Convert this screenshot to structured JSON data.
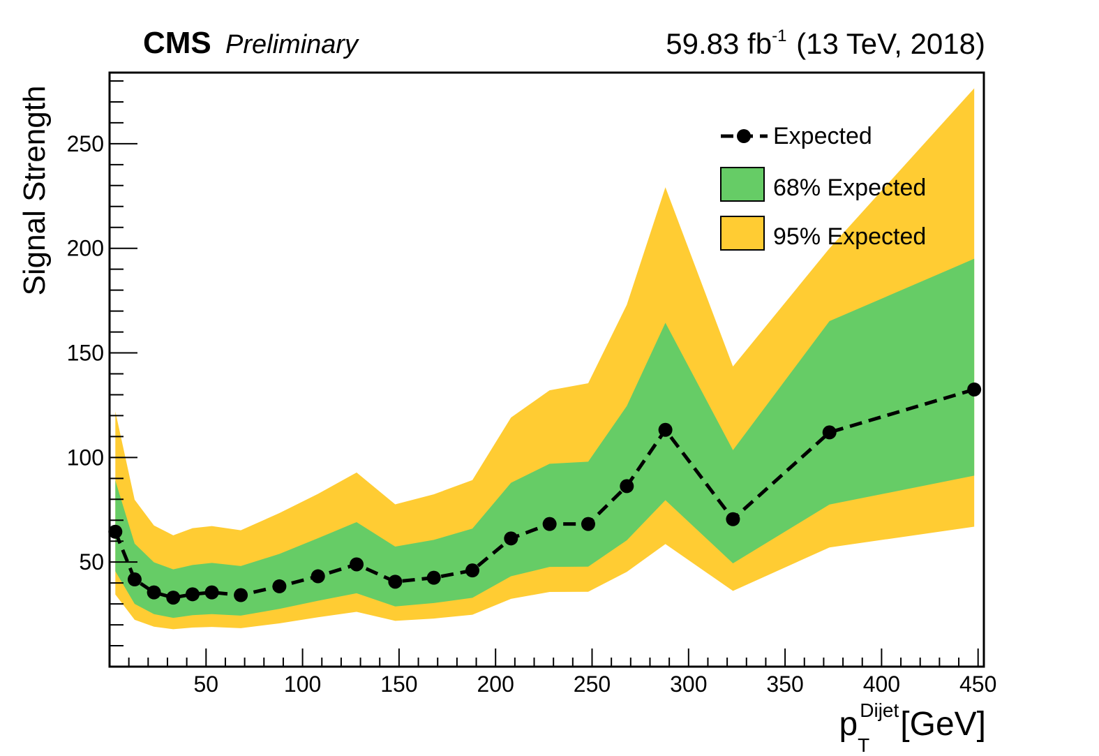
{
  "header": {
    "experiment": "CMS",
    "status": "Preliminary",
    "lumi_value": "59.83 fb",
    "lumi_exp": "-1",
    "lumi_tail": "(13 TeV, 2018)"
  },
  "axes": {
    "ylabel": "Signal Strength",
    "xlabel_p": "p",
    "xlabel_sub": "T",
    "xlabel_sup": "Dijet",
    "xlabel_unit": "[GeV]"
  },
  "colors": {
    "band95": "#ffcc33",
    "band68": "#66cc66",
    "line": "#000000"
  },
  "chart_data": {
    "type": "line",
    "xlim": [
      0,
      453
    ],
    "ylim": [
      0,
      284
    ],
    "x_ticks": [
      50,
      100,
      150,
      200,
      250,
      300,
      350,
      400,
      450
    ],
    "y_ticks": [
      50,
      100,
      150,
      200,
      250
    ],
    "legend_position": "top-right",
    "legend": [
      "Expected",
      "68% Expected",
      "95% Expected"
    ],
    "x": [
      3,
      13,
      23,
      33,
      43,
      53,
      68,
      88,
      108,
      128,
      148,
      168,
      188,
      208,
      228,
      248,
      268,
      288,
      323,
      373,
      448
    ],
    "series": [
      {
        "name": "Expected",
        "style": "dashed-with-markers",
        "values": [
          64.5,
          41.7,
          35.5,
          33.0,
          34.6,
          35.5,
          34.2,
          38.4,
          43.2,
          48.9,
          40.6,
          42.5,
          46.0,
          61.3,
          68.2,
          68.2,
          86.3,
          113.2,
          70.5,
          112.0,
          132.5
        ]
      },
      {
        "name": "68% Expected",
        "lower": [
          45.6,
          30.0,
          25.1,
          23.3,
          24.6,
          25.1,
          24.4,
          27.6,
          31.5,
          35.1,
          28.8,
          30.4,
          32.9,
          43.2,
          47.7,
          47.8,
          60.4,
          79.6,
          49.4,
          77.5,
          91.3
        ],
        "upper": [
          89.0,
          58.8,
          49.9,
          46.5,
          48.6,
          49.6,
          48.1,
          53.9,
          61.4,
          69.1,
          57.4,
          60.6,
          66.0,
          87.9,
          97.0,
          98.0,
          124.6,
          164.4,
          103.5,
          165.2,
          195.0
        ]
      },
      {
        "name": "95% Expected",
        "lower": [
          34.5,
          22.4,
          19.1,
          17.9,
          18.7,
          19.0,
          18.4,
          20.7,
          23.6,
          26.2,
          21.9,
          23.0,
          24.8,
          32.4,
          35.7,
          35.8,
          45.3,
          58.6,
          36.2,
          57.0,
          66.9
        ],
        "upper": [
          122.0,
          79.8,
          67.5,
          62.8,
          66.2,
          67.2,
          65.2,
          73.4,
          82.6,
          92.8,
          77.6,
          82.4,
          89.2,
          119.1,
          132.1,
          135.5,
          173.0,
          229.2,
          143.5,
          200.0,
          276.5
        ]
      }
    ]
  }
}
